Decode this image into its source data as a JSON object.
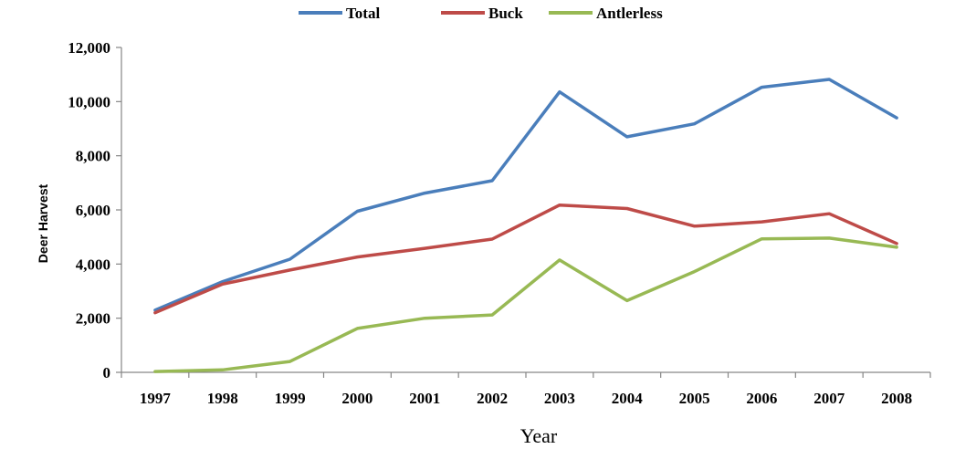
{
  "chart_data": {
    "type": "line",
    "categories": [
      "1997",
      "1998",
      "1999",
      "2000",
      "2001",
      "2002",
      "2003",
      "2004",
      "2005",
      "2006",
      "2007",
      "2008"
    ],
    "series": [
      {
        "name": "Total",
        "color": "#4a7ebb",
        "values": [
          2300,
          3350,
          4180,
          5950,
          6620,
          7080,
          10360,
          8700,
          9180,
          10530,
          10820,
          9400
        ]
      },
      {
        "name": "Buck",
        "color": "#be4b48",
        "values": [
          2200,
          3260,
          3780,
          4260,
          4580,
          4920,
          6180,
          6050,
          5400,
          5560,
          5860,
          4760
        ]
      },
      {
        "name": "Antlerless",
        "color": "#98b954",
        "values": [
          30,
          90,
          400,
          1620,
          2000,
          2120,
          4150,
          2650,
          3720,
          4930,
          4960,
          4620
        ]
      }
    ],
    "ylim": [
      0,
      12000
    ],
    "yticks": [
      "0",
      "2,000",
      "4,000",
      "6,000",
      "8,000",
      "10,000",
      "12,000"
    ],
    "ylabel": "Deer Harvest",
    "xlabel": "Year",
    "legend": "top-center",
    "grid": false
  }
}
